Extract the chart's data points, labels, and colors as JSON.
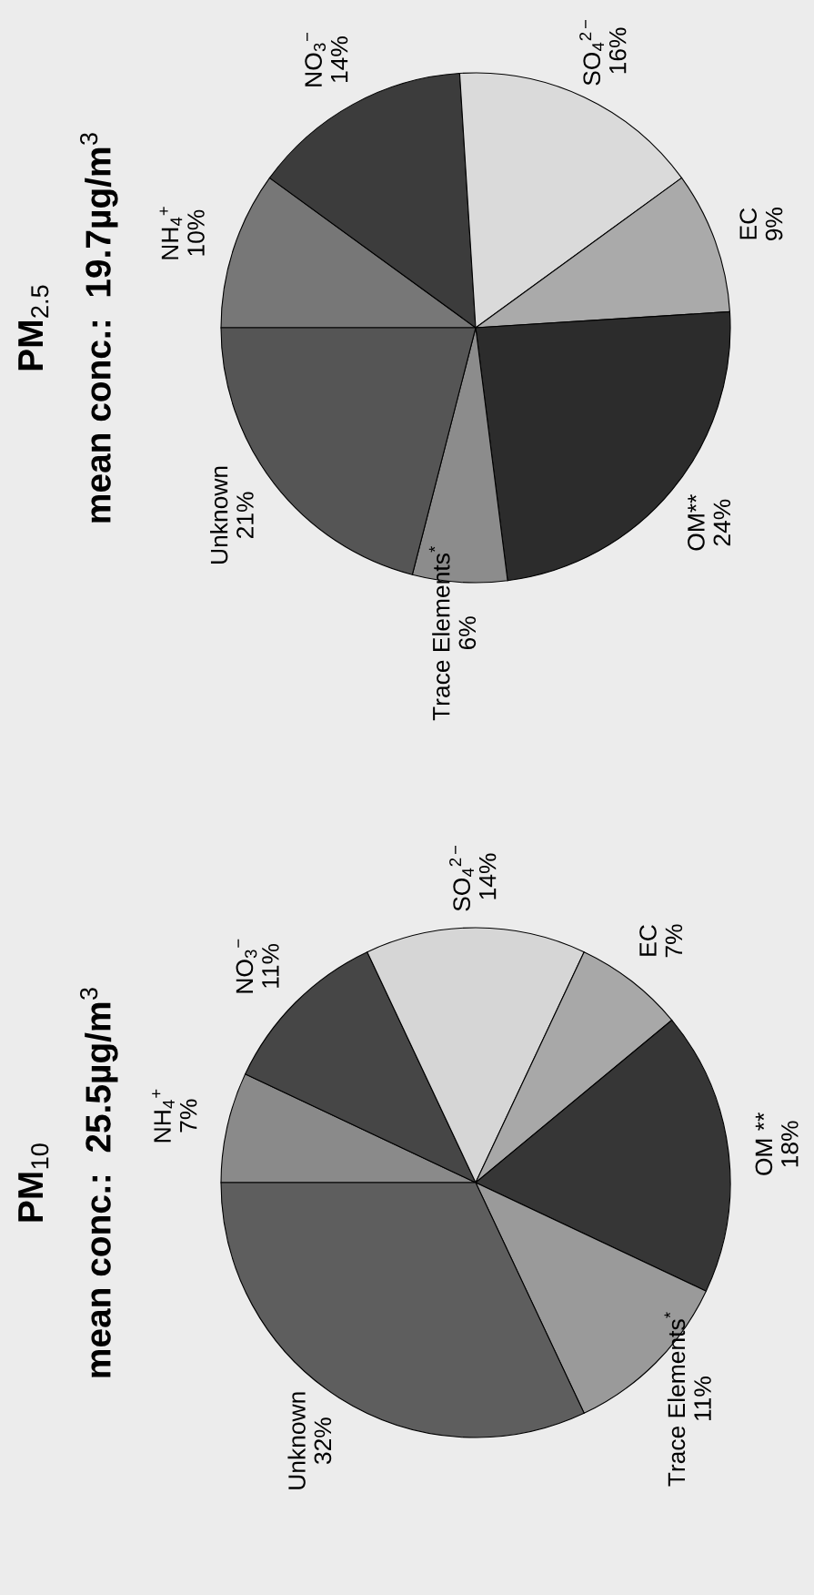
{
  "chart_data": [
    {
      "type": "pie",
      "title": "PM$_{2.5}$",
      "subtitle": "mean conc.:  19.7µg/m$^{3}$",
      "categories": [
        "NH$_{4}$$^{+}$",
        "NO$_{3}$$^{−}$",
        "SO$_{4}$$^{2−}$",
        "EC",
        "OM**",
        "Trace Elements$^{*}$",
        "Unknown"
      ],
      "values": [
        10,
        14,
        16,
        9,
        24,
        6,
        21
      ],
      "value_labels": [
        "10%",
        "14%",
        "16%",
        "9%",
        "24%",
        "6%",
        "21%"
      ],
      "colors": [
        "#777777",
        "#3c3c3c",
        "#dadada",
        "#aaaaaa",
        "#2c2c2c",
        "#8c8c8c",
        "#555555"
      ]
    },
    {
      "type": "pie",
      "title": "PM$_{10}$",
      "subtitle": "mean conc.:  25.5µg/m$^{3}$",
      "categories": [
        "NH$_{4}$$^{+}$",
        "NO$_{3}$$^{−}$",
        "SO$_{4}$$^{2−}$",
        "EC",
        "OM **",
        "Trace Elements$^{*}$",
        "Unknown"
      ],
      "values": [
        7,
        11,
        14,
        7,
        18,
        11,
        32
      ],
      "value_labels": [
        "7%",
        "11%",
        "14%",
        "7%",
        "18%",
        "11%",
        "32%"
      ],
      "colors": [
        "#8a8a8a",
        "#464646",
        "#d6d6d6",
        "#a8a8a8",
        "#363636",
        "#9a9a9a",
        "#5e5e5e"
      ]
    }
  ]
}
